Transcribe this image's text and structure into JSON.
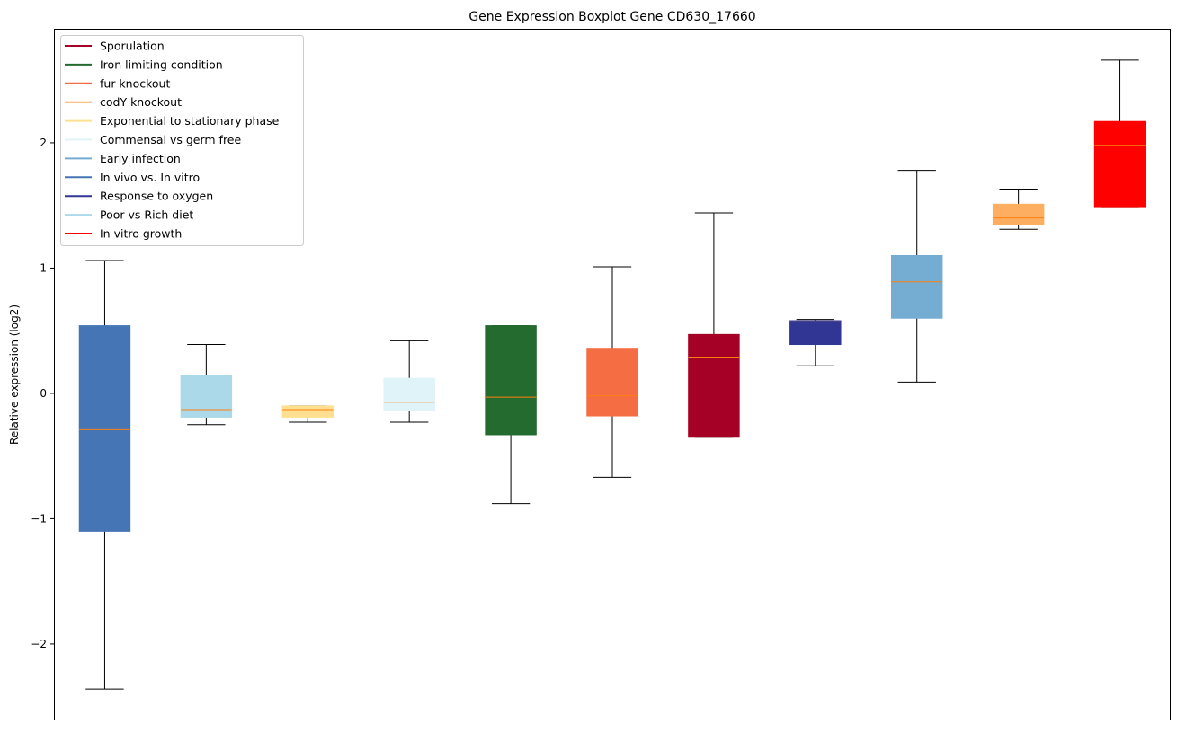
{
  "chart_data": {
    "type": "boxplot",
    "title": "Gene Expression Boxplot Gene CD630_17660",
    "xlabel": "",
    "ylabel": "Relative expression (log2)",
    "ylim": [
      -2.61,
      2.91
    ],
    "yticks": [
      -2,
      -1,
      0,
      1,
      2
    ],
    "ytick_labels": [
      "−2",
      "−1",
      "0",
      "1",
      "2"
    ],
    "grid": false,
    "legend_position": "top-left",
    "median_color": "#ff7f0e",
    "legend": [
      {
        "name": "Sporulation",
        "color": "#a50026"
      },
      {
        "name": "Iron limiting condition",
        "color": "#236b2e"
      },
      {
        "name": "fur knockout",
        "color": "#f46d43"
      },
      {
        "name": "codY knockout",
        "color": "#fdae61"
      },
      {
        "name": "Exponential to stationary phase",
        "color": "#fee090"
      },
      {
        "name": "Commensal vs germ free",
        "color": "#e0f3f8"
      },
      {
        "name": "Early infection",
        "color": "#74add1"
      },
      {
        "name": "In vivo vs. In vitro",
        "color": "#4575b4"
      },
      {
        "name": "Response to oxygen",
        "color": "#313695"
      },
      {
        "name": "Poor vs Rich diet",
        "color": "#abd9e9"
      },
      {
        "name": "In vitro growth",
        "color": "#ff0000"
      }
    ],
    "boxes": [
      {
        "series": "In vivo vs. In vitro",
        "color": "#4575b4",
        "whislo": -2.36,
        "q1": -1.1,
        "median": -0.29,
        "q3": 0.54,
        "whishi": 1.06
      },
      {
        "series": "Poor vs Rich diet",
        "color": "#abd9e9",
        "whislo": -0.25,
        "q1": -0.19,
        "median": -0.13,
        "q3": 0.14,
        "whishi": 0.39
      },
      {
        "series": "Exponential to stationary phase",
        "color": "#fee090",
        "whislo": -0.23,
        "q1": -0.19,
        "median": -0.13,
        "q3": -0.1,
        "whishi": -0.1
      },
      {
        "series": "Commensal vs germ free",
        "color": "#e0f3f8",
        "whislo": -0.23,
        "q1": -0.14,
        "median": -0.07,
        "q3": 0.12,
        "whishi": 0.42
      },
      {
        "series": "Iron limiting condition",
        "color": "#236b2e",
        "whislo": -0.88,
        "q1": -0.33,
        "median": -0.03,
        "q3": 0.54,
        "whishi": 0.54
      },
      {
        "series": "fur knockout",
        "color": "#f46d43",
        "whislo": -0.67,
        "q1": -0.18,
        "median": -0.02,
        "q3": 0.36,
        "whishi": 1.01
      },
      {
        "series": "Sporulation",
        "color": "#a50026",
        "whislo": -0.35,
        "q1": -0.35,
        "median": 0.29,
        "q3": 0.47,
        "whishi": 1.44
      },
      {
        "series": "Response to oxygen",
        "color": "#313695",
        "whislo": 0.22,
        "q1": 0.39,
        "median": 0.57,
        "q3": 0.58,
        "whishi": 0.59
      },
      {
        "series": "Early infection",
        "color": "#74add1",
        "whislo": 0.09,
        "q1": 0.6,
        "median": 0.89,
        "q3": 1.1,
        "whishi": 1.78
      },
      {
        "series": "codY knockout",
        "color": "#fdae61",
        "whislo": 1.31,
        "q1": 1.35,
        "median": 1.4,
        "q3": 1.51,
        "whishi": 1.63
      },
      {
        "series": "In vitro growth",
        "color": "#ff0000",
        "whislo": 1.49,
        "q1": 1.49,
        "median": 1.98,
        "q3": 2.17,
        "whishi": 2.66
      }
    ]
  }
}
